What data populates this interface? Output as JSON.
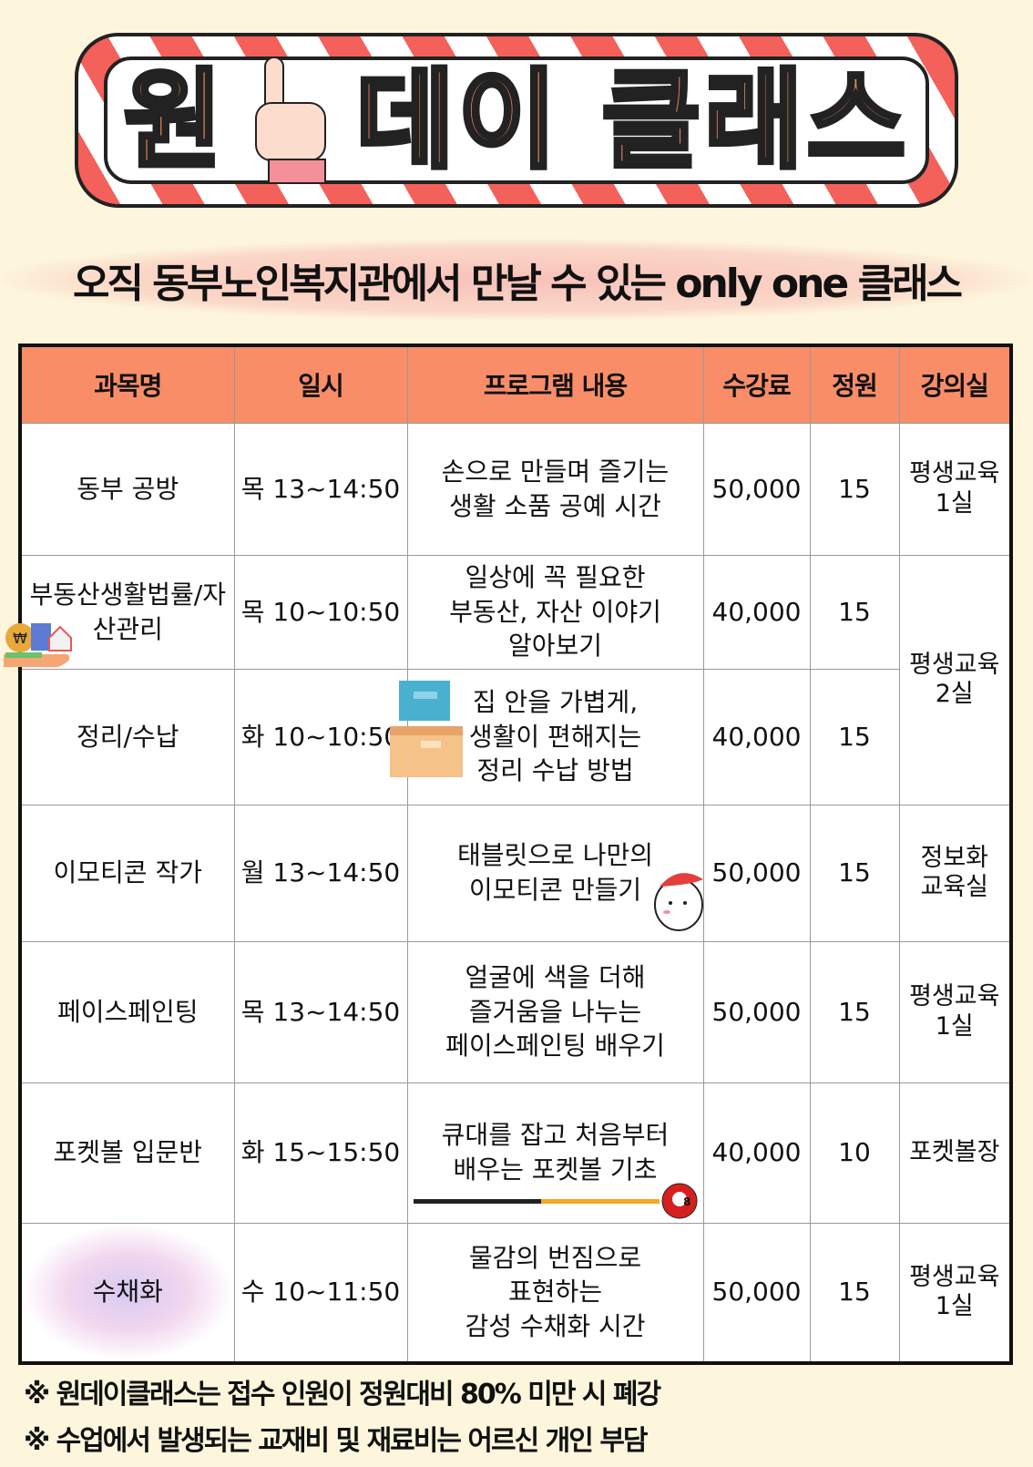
{
  "banner": {
    "title_part1": "원",
    "title_part2": "데이 클래스",
    "icon": "pointing-hand-icon"
  },
  "subtitle": "오직 동부노인복지관에서 만날 수 있는 only one 클래스",
  "colors": {
    "background": "#fdf6dc",
    "header": "#f88d68",
    "stripe": "#f4605a",
    "title_fill": "#f78a62"
  },
  "table": {
    "headers": [
      "과목명",
      "일시",
      "프로그램 내용",
      "수강료",
      "정원",
      "강의실"
    ],
    "rows": [
      {
        "name": "동부 공방",
        "time": "목 13~14:50",
        "content": [
          "손으로 만들며 즐기는",
          "생활 소품 공예 시간"
        ],
        "fee": "50,000",
        "capacity": "15",
        "room": [
          "평생교육",
          "1실"
        ]
      },
      {
        "name": "부동산생활법률/자산관리",
        "time": "목 10~10:50",
        "content": [
          "일상에 꼭 필요한",
          "부동산, 자산 이야기",
          "알아보기"
        ],
        "fee": "40,000",
        "capacity": "15",
        "room": [
          "평생교육",
          "2실"
        ]
      },
      {
        "name": "정리/수납",
        "time": "화 10~10:50",
        "content": [
          "집 안을 가볍게,",
          "생활이 편해지는",
          "정리 수납 방법"
        ],
        "fee": "40,000",
        "capacity": "15"
      },
      {
        "name": "이모티콘 작가",
        "time": "월 13~14:50",
        "content": [
          "태블릿으로 나만의",
          "이모티콘 만들기"
        ],
        "fee": "50,000",
        "capacity": "15",
        "room": [
          "정보화",
          "교육실"
        ]
      },
      {
        "name": "페이스페인팅",
        "time": "목 13~14:50",
        "content": [
          "얼굴에 색을 더해",
          "즐거움을 나누는",
          "페이스페인팅 배우기"
        ],
        "fee": "50,000",
        "capacity": "15",
        "room": [
          "평생교육",
          "1실"
        ]
      },
      {
        "name": "포켓볼 입문반",
        "time": "화 15~15:50",
        "content": [
          "큐대를 잡고 처음부터",
          "배우는 포켓볼 기초"
        ],
        "fee": "40,000",
        "capacity": "10",
        "room": [
          "포켓볼장"
        ]
      },
      {
        "name": "수채화",
        "time": "수 10~11:50",
        "content": [
          "물감의 번짐으로",
          "표현하는",
          "감성 수채화 시간"
        ],
        "fee": "50,000",
        "capacity": "15",
        "room": [
          "평생교육",
          "1실"
        ]
      }
    ],
    "billiard_ball_number": "8"
  },
  "notes": [
    "※ 원데이클래스는 접수 인원이 정원대비 80% 미만 시 폐강",
    "※ 수업에서 발생되는 교재비 및 재료비는 어르신 개인 부담"
  ]
}
